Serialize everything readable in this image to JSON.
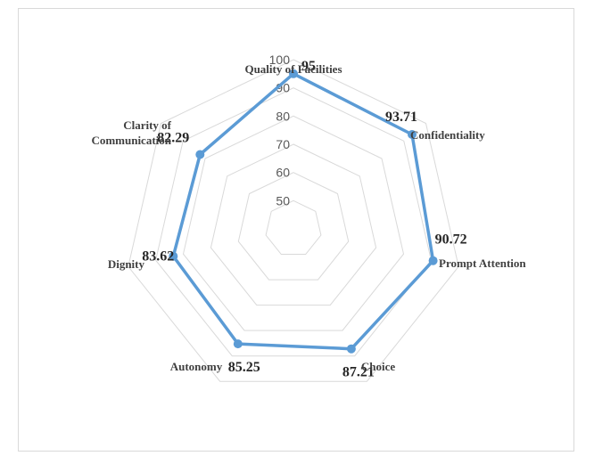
{
  "chart_data": {
    "type": "radar",
    "categories": [
      "Quality of Facilities",
      "Confidentiality",
      "Prompt Attention",
      "Choice",
      "Autonomy",
      "Dignity",
      "Clarity of Communication"
    ],
    "category_labels": [
      [
        "Quality of Facilities"
      ],
      [
        "Confidentiality"
      ],
      [
        "Prompt Attention"
      ],
      [
        "Choice"
      ],
      [
        "Autonomy"
      ],
      [
        "Dignity"
      ],
      [
        "Clarity of",
        "Communication"
      ]
    ],
    "values": [
      95,
      93.71,
      90.72,
      87.21,
      85.25,
      83.62,
      82.29
    ],
    "value_labels": [
      "95",
      "93.71",
      "90.72",
      "87.21",
      "85.25",
      "83.62",
      "82.29"
    ],
    "rlim": [
      40,
      100
    ],
    "ticks": [
      50,
      60,
      70,
      80,
      90,
      100
    ],
    "tick_labels": [
      "50",
      "60",
      "70",
      "80",
      "90",
      "100"
    ],
    "grid": true,
    "legend": "none",
    "colors": {
      "series": "#5b9bd5",
      "grid": "#d9d9d9"
    }
  }
}
